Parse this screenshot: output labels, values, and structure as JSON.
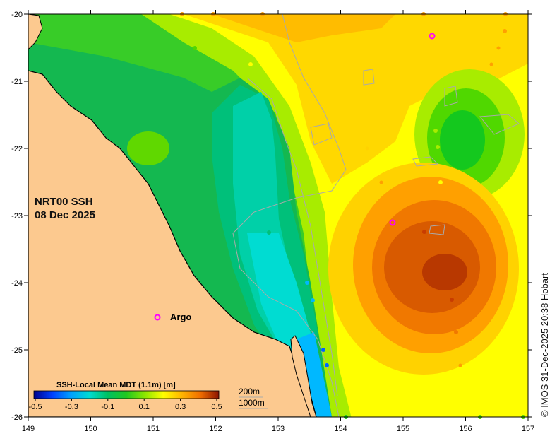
{
  "map": {
    "title_line1": "NRT00 SSH",
    "title_line2": "08 Dec 2025",
    "lon_ticks": [
      "149",
      "150",
      "151",
      "152",
      "153",
      "154",
      "155",
      "156",
      "157"
    ],
    "lat_ticks": [
      "-20",
      "-21",
      "-22",
      "-23",
      "-24",
      "-25",
      "-26"
    ],
    "argo_marker": "o",
    "argo_label": "Argo",
    "colorbar": {
      "title": "SSH-Local Mean MDT (1.1m) [m]",
      "ticks": [
        "-0.5",
        "-0.3",
        "-0.1",
        "0.1",
        "0.3",
        "0.5"
      ],
      "colors": [
        "#00008c",
        "#0019d4",
        "#0064ff",
        "#00b4ff",
        "#00dcd2",
        "#00c88c",
        "#00b450",
        "#14c81e",
        "#50d800",
        "#8ce600",
        "#c8f000",
        "#ffff00",
        "#ffd200",
        "#ffa000",
        "#f06e00",
        "#c83c00",
        "#8c1400"
      ]
    },
    "legend_200m": "200m",
    "legend_1000m": "1000m",
    "credit": "© IMOS 31-Dec-2025 20:38 Hobart",
    "colors": {
      "land": "#fcc98f",
      "coast": "#000000",
      "bathy": "#aaaaaa"
    }
  }
}
